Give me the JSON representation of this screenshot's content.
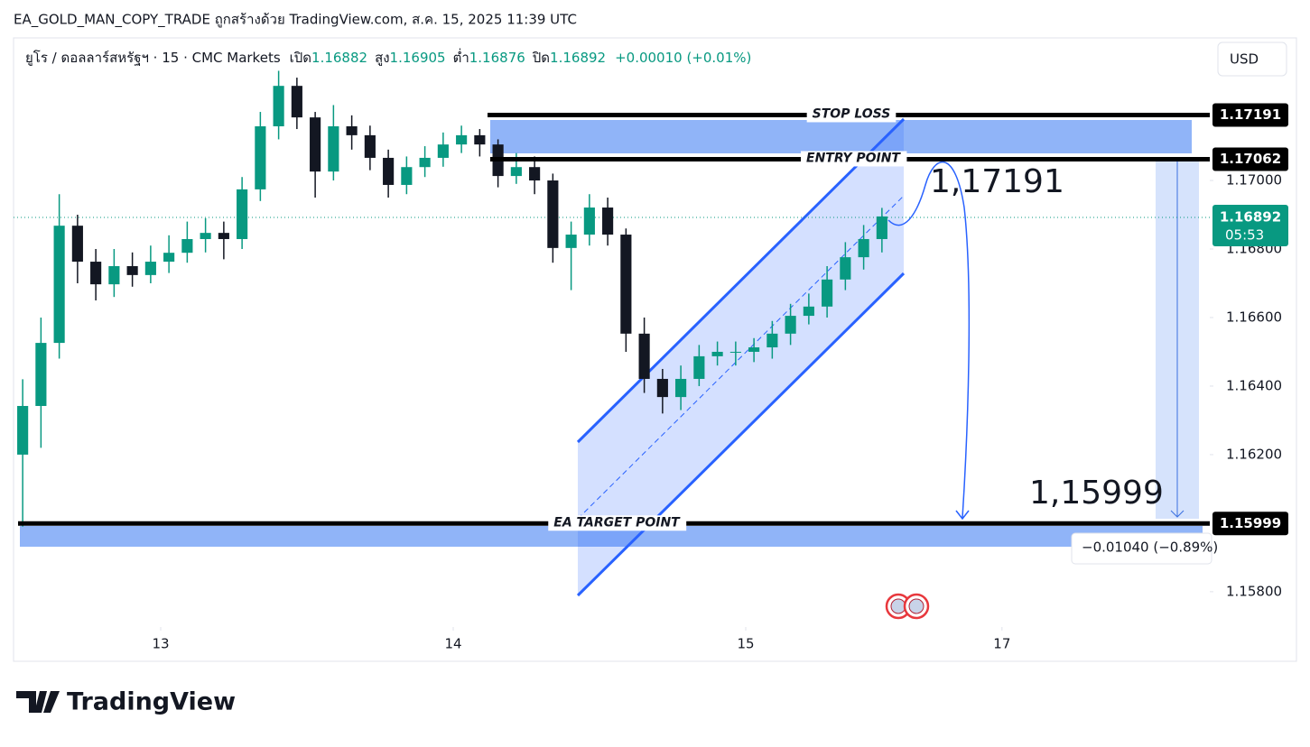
{
  "header": {
    "title": "EA_GOLD_MAN_COPY_TRADE ถูกสร้างด้วย TradingView.com, ส.ค. 15, 2025 11:39 UTC"
  },
  "chart_data": {
    "type": "candlestick",
    "symbol": "ยูโร / ดอลลาร์สหรัฐฯ · 15 · CMC Markets",
    "ohlc_legend": {
      "open_label": "เปิด",
      "open": "1.16882",
      "high_label": "สูง",
      "high": "1.16905",
      "low_label": "ต่ำ",
      "low": "1.16876",
      "close_label": "ปิด",
      "close": "1.16892",
      "change": "+0.00010 (+0.01%)"
    },
    "currency": "USD",
    "x": [
      3,
      9,
      15,
      21,
      27,
      33,
      39,
      45,
      51,
      57,
      63,
      69,
      75,
      81,
      87,
      93,
      99,
      105,
      111,
      117,
      123,
      129,
      135,
      141,
      147,
      153,
      159,
      165,
      171,
      177,
      183,
      189,
      195,
      201,
      207,
      213,
      219,
      225,
      231,
      237,
      243,
      249,
      255,
      261,
      267,
      273,
      279,
      285
    ],
    "open": [
      1.162,
      1.16342,
      1.16526,
      1.16868,
      1.16763,
      1.16697,
      1.1675,
      1.16724,
      1.16763,
      1.16789,
      1.16829,
      1.16847,
      1.16829,
      1.16974,
      1.17158,
      1.17276,
      1.17184,
      1.17026,
      1.17158,
      1.17132,
      1.17066,
      1.16987,
      1.17039,
      1.17066,
      1.17105,
      1.17132,
      1.17105,
      1.17013,
      1.17039,
      1.17,
      1.16803,
      1.16842,
      1.16921,
      1.16842,
      1.16553,
      1.16421,
      1.16368,
      1.16421,
      1.16487,
      1.165,
      1.165,
      1.16513,
      1.16553,
      1.16605,
      1.16632,
      1.16711,
      1.16776,
      1.16829
    ],
    "high": [
      1.1642,
      1.166,
      1.1696,
      1.169,
      1.168,
      1.168,
      1.1679,
      1.1681,
      1.1684,
      1.1688,
      1.1689,
      1.1688,
      1.1701,
      1.172,
      1.1732,
      1.173,
      1.172,
      1.1722,
      1.1719,
      1.1716,
      1.1709,
      1.1707,
      1.171,
      1.1714,
      1.1716,
      1.1715,
      1.1712,
      1.1708,
      1.1707,
      1.1702,
      1.1688,
      1.1696,
      1.1695,
      1.1686,
      1.166,
      1.1645,
      1.1646,
      1.1652,
      1.1653,
      1.1653,
      1.1654,
      1.1659,
      1.1664,
      1.1667,
      1.1675,
      1.1682,
      1.1687,
      1.1692
    ],
    "low": [
      1.1599,
      1.1622,
      1.1648,
      1.167,
      1.1665,
      1.1666,
      1.1669,
      1.167,
      1.1673,
      1.1676,
      1.1679,
      1.1677,
      1.168,
      1.1694,
      1.1712,
      1.1715,
      1.1695,
      1.17,
      1.1709,
      1.1703,
      1.1695,
      1.1696,
      1.1701,
      1.1704,
      1.1708,
      1.1707,
      1.1698,
      1.1699,
      1.1696,
      1.1676,
      1.1668,
      1.1681,
      1.1681,
      1.165,
      1.1638,
      1.1632,
      1.1633,
      1.164,
      1.1646,
      1.1646,
      1.1647,
      1.1648,
      1.1652,
      1.1658,
      1.166,
      1.1668,
      1.1674,
      1.1679
    ],
    "close": [
      1.16342,
      1.16526,
      1.16868,
      1.16763,
      1.16697,
      1.1675,
      1.16724,
      1.16763,
      1.16789,
      1.16829,
      1.16847,
      1.16829,
      1.16974,
      1.17158,
      1.17276,
      1.17184,
      1.17026,
      1.17158,
      1.17132,
      1.17066,
      1.16987,
      1.17039,
      1.17066,
      1.17105,
      1.17132,
      1.17105,
      1.17013,
      1.17039,
      1.17,
      1.16803,
      1.16842,
      1.16921,
      1.16842,
      1.16553,
      1.16421,
      1.16368,
      1.16421,
      1.16487,
      1.165,
      1.165,
      1.16513,
      1.16553,
      1.16605,
      1.16632,
      1.16711,
      1.16776,
      1.16829,
      1.16895
    ],
    "up_color": "#089981",
    "down_color": "#131722",
    "xlim": [
      0,
      392.6
    ],
    "xticks": [
      {
        "value": 48.3,
        "label": "13"
      },
      {
        "value": 144.3,
        "label": "14"
      },
      {
        "value": 240.3,
        "label": "15"
      },
      {
        "value": 324.4,
        "label": "17"
      }
    ],
    "ylim": [
      1.15697,
      1.17416
    ],
    "yticks": [
      {
        "value": 1.17,
        "label": "1.17000"
      },
      {
        "value": 1.168,
        "label": "1.16800"
      },
      {
        "value": 1.166,
        "label": "1.16600"
      },
      {
        "value": 1.164,
        "label": "1.16400"
      },
      {
        "value": 1.162,
        "label": "1.16200"
      },
      {
        "value": 1.158,
        "label": "1.15800"
      }
    ],
    "levels": [
      {
        "name": "STOP LOSS",
        "value": 1.17191
      },
      {
        "name": "ENTRY POINT",
        "value": 1.17062
      },
      {
        "name": "EA TARGET POINT",
        "value": 1.15999
      }
    ],
    "current_price": {
      "value": 1.16892,
      "countdown": "05:53",
      "color": "#089981"
    },
    "annotations": [
      "1,17191",
      "1,15999"
    ],
    "measure": "−0.01040 (−0.89%)"
  },
  "footer": {
    "brand": "TradingView"
  }
}
